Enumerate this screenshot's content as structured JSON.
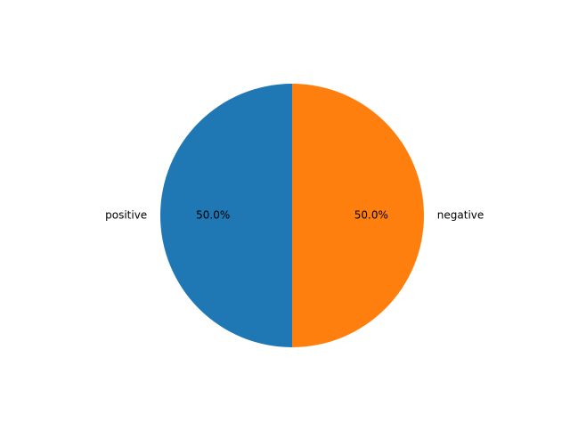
{
  "chart_data": {
    "type": "pie",
    "title": "",
    "start_angle_deg": 90,
    "direction": "counterclockwise",
    "slices": [
      {
        "label": "positive",
        "value": 50.0,
        "pct_label": "50.0%",
        "color": "#1f77b4"
      },
      {
        "label": "negative",
        "value": 50.0,
        "pct_label": "50.0%",
        "color": "#ff7f0e"
      }
    ]
  }
}
